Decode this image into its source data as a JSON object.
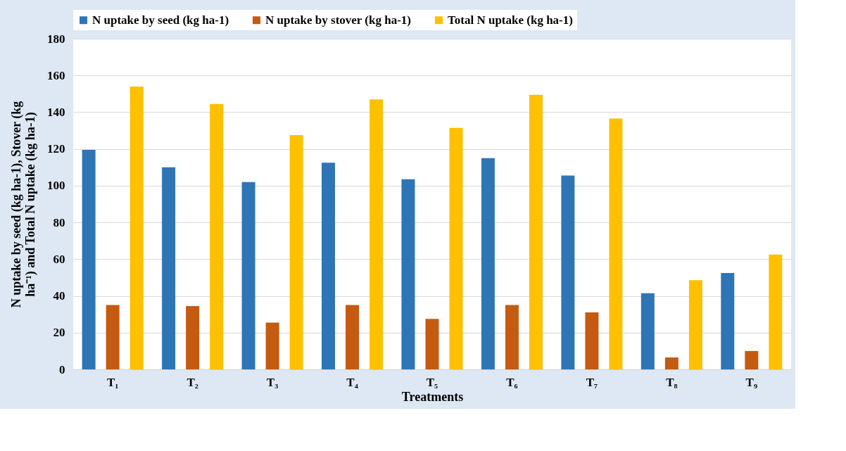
{
  "chart_data": {
    "type": "bar",
    "xlabel": "Treatments",
    "ylabel": "N uptake by seed (kg ha-1), Stover (kg ha⁻¹) and Total N uptake (kg ha-1)",
    "categories": [
      "T₁",
      "T₂",
      "T₃",
      "T₄",
      "T₅",
      "T₆",
      "T₇",
      "T₈",
      "T₉"
    ],
    "series": [
      {
        "name": "N uptake by seed (kg ha-1)",
        "color": "#2e75b6",
        "values": [
          119.5,
          110,
          102,
          112.5,
          103.5,
          115,
          105.5,
          41.5,
          52.5
        ]
      },
      {
        "name": "N uptake by stover (kg ha-1)",
        "color": "#c55a11",
        "values": [
          35,
          34.5,
          25.5,
          35,
          27.5,
          35,
          31,
          6.5,
          10
        ]
      },
      {
        "name": "Total N uptake (kg ha-1)",
        "color": "#ffc000",
        "values": [
          154,
          144.5,
          127.5,
          147,
          131.5,
          149.5,
          136.5,
          48.5,
          62.5
        ]
      }
    ],
    "ylim": [
      0,
      180
    ],
    "yticks": [
      0,
      20,
      40,
      60,
      80,
      100,
      120,
      140,
      160,
      180
    ],
    "grid": "y",
    "legend": "top"
  }
}
